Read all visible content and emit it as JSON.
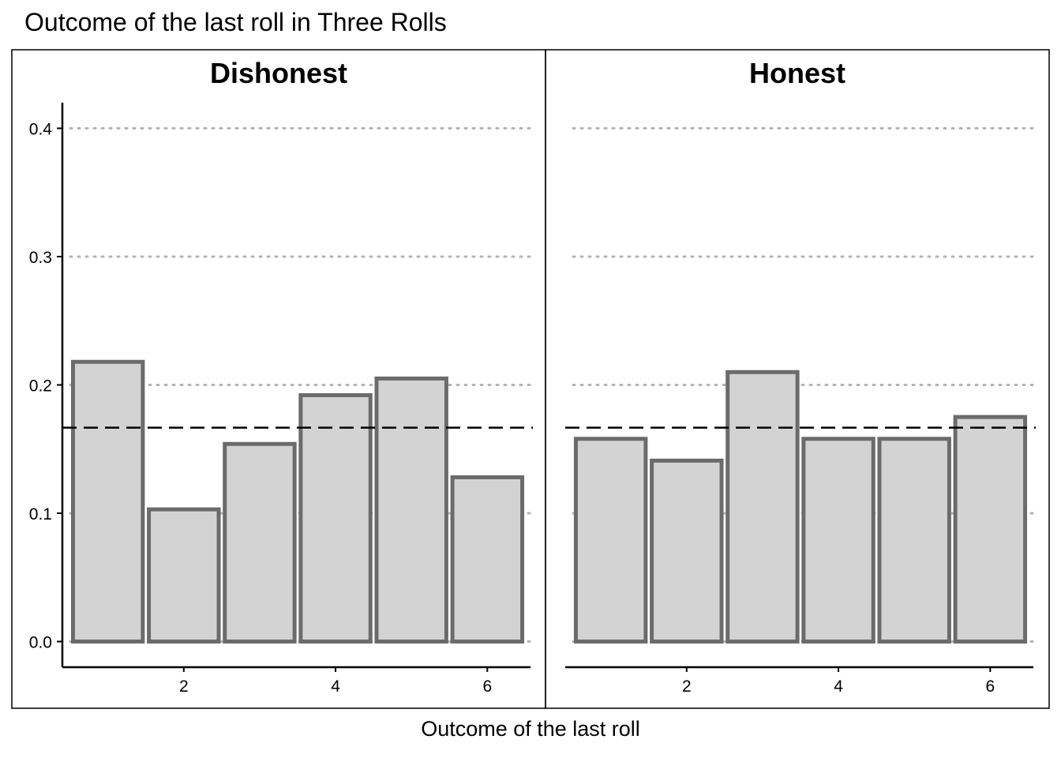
{
  "chart_data": {
    "type": "bar",
    "title": "Outcome of the last roll in Three Rolls",
    "xlabel": "Outcome of the last roll",
    "ylabel": "",
    "categories": [
      1,
      2,
      3,
      4,
      5,
      6
    ],
    "x_ticks": [
      "2",
      "4",
      "6"
    ],
    "y_ticks": [
      "0.0",
      "0.1",
      "0.2",
      "0.3",
      "0.4"
    ],
    "ylim": [
      -0.02,
      0.42
    ],
    "reference_line": 0.1667,
    "grid": "horizontal-dotted",
    "facets": [
      {
        "name": "Dishonest",
        "values": [
          0.218,
          0.103,
          0.154,
          0.192,
          0.205,
          0.128
        ]
      },
      {
        "name": "Honest",
        "values": [
          0.158,
          0.141,
          0.21,
          0.158,
          0.158,
          0.175
        ]
      }
    ],
    "colors": {
      "bar_fill": "#d3d3d3",
      "bar_stroke": "#6b6b6b",
      "grid": "#b3b3b3",
      "reference_line": "#000000"
    }
  }
}
